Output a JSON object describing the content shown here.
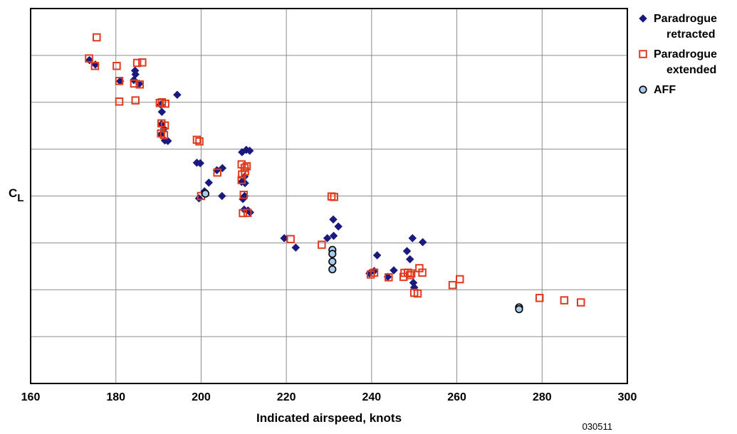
{
  "chart_data": {
    "type": "scatter",
    "xlabel": "Indicated airspeed, knots",
    "ylabel_main": "C",
    "ylabel_sub": "L",
    "xlim": [
      160,
      300
    ],
    "x_ticks": [
      160,
      180,
      200,
      220,
      240,
      260,
      280,
      300
    ],
    "y_ticks": [],
    "grid": true,
    "legend_position": "right-outside-top",
    "figure_id": "030511",
    "series": [
      {
        "name": "Paradrogue retracted",
        "legend_lines": [
          "Paradrogue",
          "retracted"
        ],
        "marker": "diamond",
        "color": "#1a1a7e",
        "points": [
          [
            173.8,
            0.45
          ],
          [
            175.2,
            0.64
          ],
          [
            184.6,
            1.06
          ],
          [
            181.0,
            1.35
          ],
          [
            184.2,
            1.3
          ],
          [
            185.5,
            1.46
          ],
          [
            184.5,
            0.9
          ],
          [
            194.4,
            1.93
          ],
          [
            190.5,
            2.35
          ],
          [
            190.8,
            2.66
          ],
          [
            190.7,
            3.18
          ],
          [
            191.3,
            3.38
          ],
          [
            190.6,
            3.62
          ],
          [
            191.5,
            3.88
          ],
          [
            192.2,
            3.9
          ],
          [
            199.0,
            4.83
          ],
          [
            199.8,
            4.85
          ],
          [
            203.7,
            5.15
          ],
          [
            205.0,
            5.06
          ],
          [
            200.8,
            6.05
          ],
          [
            199.5,
            6.35
          ],
          [
            201.8,
            5.68
          ],
          [
            204.9,
            6.25
          ],
          [
            209.5,
            5.65
          ],
          [
            210.2,
            5.42
          ],
          [
            210.3,
            5.7
          ],
          [
            209.8,
            6.38
          ],
          [
            210.2,
            6.25
          ],
          [
            210.1,
            6.83
          ],
          [
            211.0,
            6.87
          ],
          [
            211.5,
            6.95
          ],
          [
            209.6,
            4.38
          ],
          [
            210.6,
            4.28
          ],
          [
            211.4,
            4.32
          ],
          [
            219.5,
            8.05
          ],
          [
            222.2,
            8.45
          ],
          [
            229.6,
            8.05
          ],
          [
            231.1,
            7.95
          ],
          [
            232.2,
            7.55
          ],
          [
            231.0,
            7.25
          ],
          [
            239.5,
            9.55
          ],
          [
            240.6,
            9.45
          ],
          [
            241.3,
            8.78
          ],
          [
            243.8,
            9.7
          ],
          [
            245.2,
            9.42
          ],
          [
            248.3,
            8.6
          ],
          [
            249.0,
            8.95
          ],
          [
            249.6,
            8.05
          ],
          [
            252.0,
            8.22
          ],
          [
            249.8,
            9.95
          ],
          [
            250.0,
            10.15
          ]
        ]
      },
      {
        "name": "Paradrogue extended",
        "legend_lines": [
          "Paradrogue",
          "extended"
        ],
        "marker": "square",
        "color": "#e03a1e",
        "points": [
          [
            173.7,
            0.38
          ],
          [
            175.5,
            -0.52
          ],
          [
            175.1,
            0.7
          ],
          [
            180.2,
            0.7
          ],
          [
            185.0,
            0.57
          ],
          [
            186.2,
            0.55
          ],
          [
            180.8,
            1.34
          ],
          [
            185.6,
            1.49
          ],
          [
            184.3,
            1.45
          ],
          [
            180.8,
            2.22
          ],
          [
            184.6,
            2.17
          ],
          [
            190.3,
            2.28
          ],
          [
            190.8,
            2.25
          ],
          [
            191.6,
            2.31
          ],
          [
            190.7,
            3.15
          ],
          [
            191.5,
            3.24
          ],
          [
            190.6,
            3.58
          ],
          [
            191.3,
            3.65
          ],
          [
            199.0,
            3.85
          ],
          [
            199.6,
            3.92
          ],
          [
            203.8,
            5.25
          ],
          [
            209.5,
            4.9
          ],
          [
            210.2,
            5.05
          ],
          [
            209.6,
            5.33
          ],
          [
            210.3,
            5.2
          ],
          [
            210.7,
            4.98
          ],
          [
            209.5,
            5.57
          ],
          [
            200.0,
            6.25
          ],
          [
            210.0,
            6.2
          ],
          [
            209.8,
            6.98
          ],
          [
            210.9,
            6.97
          ],
          [
            221.0,
            8.09
          ],
          [
            228.3,
            8.33
          ],
          [
            230.6,
            6.27
          ],
          [
            231.2,
            6.29
          ],
          [
            239.8,
            9.6
          ],
          [
            240.6,
            9.52
          ],
          [
            244.0,
            9.72
          ],
          [
            247.7,
            9.53
          ],
          [
            248.5,
            9.52
          ],
          [
            249.3,
            9.55
          ],
          [
            247.5,
            9.7
          ],
          [
            249.0,
            9.63
          ],
          [
            251.2,
            9.33
          ],
          [
            251.9,
            9.52
          ],
          [
            250.0,
            10.38
          ],
          [
            250.8,
            10.41
          ],
          [
            259.0,
            10.05
          ],
          [
            260.7,
            9.8
          ],
          [
            279.4,
            10.6
          ],
          [
            285.2,
            10.7
          ],
          [
            289.1,
            10.79
          ]
        ]
      },
      {
        "name": "AFF",
        "legend_lines": [
          "AFF"
        ],
        "marker": "circle",
        "color": "#a9cbea",
        "points": [
          [
            201.0,
            6.15
          ],
          [
            230.8,
            8.55
          ],
          [
            230.8,
            8.72
          ],
          [
            230.8,
            9.05
          ],
          [
            230.8,
            9.38
          ],
          [
            274.6,
            11.0
          ],
          [
            274.6,
            11.08
          ]
        ]
      }
    ]
  }
}
